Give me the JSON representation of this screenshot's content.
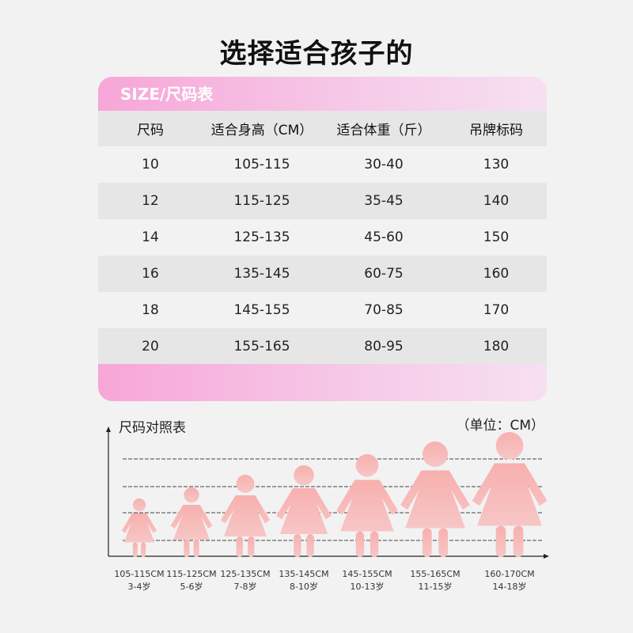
{
  "title": "选择适合孩子的",
  "table": {
    "heading": "SIZE/尺码表",
    "columns": [
      "尺码",
      "适合身高（CM）",
      "适合体重（斤）",
      "吊牌标码"
    ],
    "rows": [
      [
        "10",
        "105-115",
        "30-40",
        "130"
      ],
      [
        "12",
        "115-125",
        "35-45",
        "140"
      ],
      [
        "14",
        "125-135",
        "45-60",
        "150"
      ],
      [
        "16",
        "135-145",
        "60-75",
        "160"
      ],
      [
        "18",
        "145-155",
        "70-85",
        "170"
      ],
      [
        "20",
        "155-165",
        "80-95",
        "180"
      ]
    ]
  },
  "chart": {
    "title": "尺码对照表",
    "unit": "（单位：CM）",
    "figure_color": "#f5a3a3",
    "figures": [
      {
        "height": "105-115CM",
        "age": "3-4岁"
      },
      {
        "height": "115-125CM",
        "age": "5-6岁"
      },
      {
        "height": "125-135CM",
        "age": "7-8岁"
      },
      {
        "height": "135-145CM",
        "age": "8-10岁"
      },
      {
        "height": "145-155CM",
        "age": "10-13岁"
      },
      {
        "height": "155-165CM",
        "age": "11-15岁"
      },
      {
        "height": "160-170CM",
        "age": "14-18岁"
      }
    ]
  }
}
